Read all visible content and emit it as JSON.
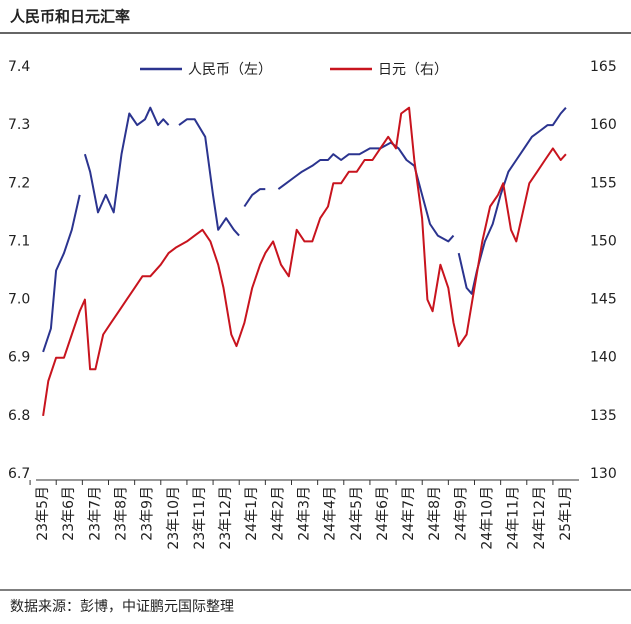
{
  "chart_data": {
    "type": "line",
    "title": "人民币和日元汇率",
    "source": "数据来源：彭博，中证鹏元国际整理",
    "xlim": [
      0,
      21
    ],
    "xticks": [
      {
        "value": 0.5,
        "label": "23年5月"
      },
      {
        "value": 1.5,
        "label": "23年6月"
      },
      {
        "value": 2.5,
        "label": "23年7月"
      },
      {
        "value": 3.5,
        "label": "23年8月"
      },
      {
        "value": 4.5,
        "label": "23年9月"
      },
      {
        "value": 5.5,
        "label": "23年10月"
      },
      {
        "value": 6.5,
        "label": "23年11月"
      },
      {
        "value": 7.5,
        "label": "23年12月"
      },
      {
        "value": 8.5,
        "label": "24年1月"
      },
      {
        "value": 9.5,
        "label": "24年2月"
      },
      {
        "value": 10.5,
        "label": "24年3月"
      },
      {
        "value": 11.5,
        "label": "24年4月"
      },
      {
        "value": 12.5,
        "label": "24年5月"
      },
      {
        "value": 13.5,
        "label": "24年6月"
      },
      {
        "value": 14.5,
        "label": "24年7月"
      },
      {
        "value": 15.5,
        "label": "24年8月"
      },
      {
        "value": 16.5,
        "label": "24年9月"
      },
      {
        "value": 17.5,
        "label": "24年10月"
      },
      {
        "value": 18.5,
        "label": "24年11月"
      },
      {
        "value": 19.5,
        "label": "24年12月"
      },
      {
        "value": 20.5,
        "label": "25年1月"
      }
    ],
    "ylim": [
      6.7,
      7.4
    ],
    "yticks": [
      6.7,
      6.8,
      6.9,
      {
        "value": 7,
        "label": "7.0"
      },
      7.1,
      7.2,
      7.3,
      7.4
    ],
    "y2lim": [
      130,
      165
    ],
    "y2ticks": [
      130,
      135,
      140,
      145,
      150,
      155,
      160,
      165
    ],
    "series": [
      {
        "name": "人民币（左）",
        "color": "#2b348f",
        "x": [
          0.5,
          0.8,
          1.0,
          1.3,
          1.6,
          1.9,
          2.0,
          2.1,
          2.3,
          2.6,
          2.9,
          3.2,
          3.5,
          3.8,
          4.1,
          4.4,
          4.6,
          4.9,
          5.1,
          5.3,
          5.5,
          5.7,
          6.0,
          6.3,
          6.7,
          7.0,
          7.2,
          7.5,
          7.8,
          8.0,
          8.1,
          8.2,
          8.5,
          8.8,
          9.0,
          9.2,
          9.5,
          9.8,
          10.1,
          10.4,
          10.8,
          11.1,
          11.4,
          11.6,
          11.9,
          12.2,
          12.6,
          13.0,
          13.4,
          13.8,
          14.1,
          14.4,
          14.7,
          15.0,
          15.3,
          15.6,
          16.0,
          16.2,
          16.3,
          16.4,
          16.7,
          16.9,
          17.1,
          17.4,
          17.7,
          18.0,
          18.3,
          18.6,
          18.9,
          19.2,
          19.5,
          19.8,
          20.0,
          20.3,
          20.5
        ],
        "values": [
          6.91,
          6.95,
          7.05,
          7.08,
          7.12,
          7.18,
          null,
          7.25,
          7.22,
          7.15,
          7.18,
          7.15,
          7.25,
          7.32,
          7.3,
          7.31,
          7.33,
          7.3,
          7.31,
          7.3,
          null,
          7.3,
          7.31,
          7.31,
          7.28,
          7.18,
          7.12,
          7.14,
          7.12,
          7.11,
          null,
          7.16,
          7.18,
          7.19,
          7.19,
          null,
          7.19,
          7.2,
          7.21,
          7.22,
          7.23,
          7.24,
          7.24,
          7.25,
          7.24,
          7.25,
          7.25,
          7.26,
          7.26,
          7.27,
          7.26,
          7.24,
          7.23,
          7.18,
          7.13,
          7.11,
          7.1,
          7.11,
          null,
          7.08,
          7.02,
          7.01,
          7.05,
          7.1,
          7.13,
          7.18,
          7.22,
          7.24,
          7.26,
          7.28,
          7.29,
          7.3,
          7.3,
          7.32,
          7.33
        ]
      },
      {
        "name": "日元（右）",
        "color": "#c8141e",
        "axis": "y2",
        "x": [
          0.5,
          0.7,
          1.0,
          1.3,
          1.6,
          1.9,
          2.1,
          2.3,
          2.5,
          2.8,
          3.1,
          3.4,
          3.7,
          4.0,
          4.3,
          4.6,
          5.0,
          5.3,
          5.6,
          6.0,
          6.3,
          6.6,
          6.9,
          7.2,
          7.4,
          7.7,
          7.9,
          8.2,
          8.5,
          8.8,
          9.0,
          9.3,
          9.6,
          9.9,
          10.2,
          10.5,
          10.8,
          11.1,
          11.4,
          11.6,
          11.9,
          12.2,
          12.5,
          12.8,
          13.1,
          13.4,
          13.7,
          14.0,
          14.2,
          14.5,
          14.7,
          15.0,
          15.2,
          15.4,
          15.7,
          16.0,
          16.2,
          16.4,
          16.7,
          17.0,
          17.3,
          17.6,
          17.9,
          18.1,
          18.4,
          18.6,
          18.8,
          19.1,
          19.4,
          19.7,
          20.0,
          20.3,
          20.5
        ],
        "values": [
          135,
          138,
          140,
          140,
          142,
          144,
          145,
          139,
          139,
          142,
          143,
          144,
          145,
          146,
          147,
          147,
          148,
          149,
          149.5,
          150,
          150.5,
          151,
          150,
          148,
          146,
          142,
          141,
          143,
          146,
          148,
          149,
          150,
          148,
          147,
          151,
          150,
          150,
          152,
          153,
          155,
          155,
          156,
          156,
          157,
          157,
          158,
          159,
          158,
          161,
          161.5,
          157,
          152,
          145,
          144,
          148,
          146,
          143,
          141,
          142,
          146,
          150,
          153,
          154,
          155,
          151,
          150,
          152,
          155,
          156,
          157,
          158,
          157,
          157.5
        ]
      }
    ]
  }
}
